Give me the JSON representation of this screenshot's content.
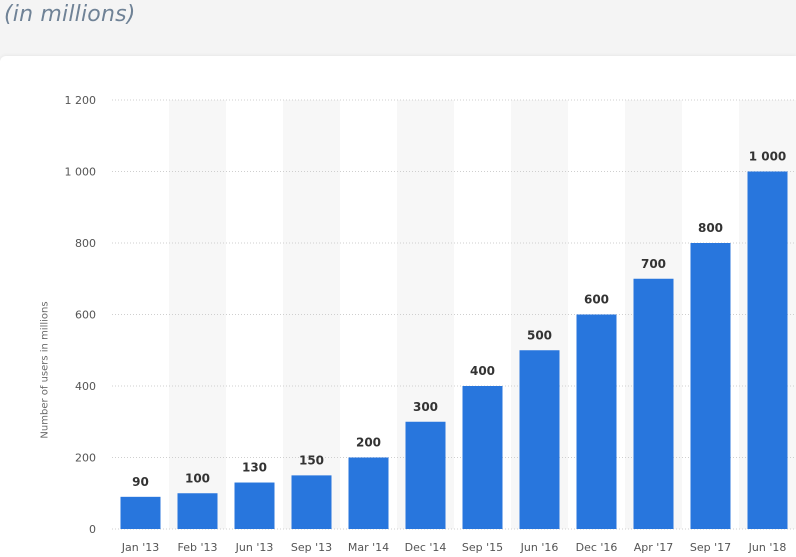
{
  "header": {
    "subtitle": "(in millions)"
  },
  "chart_data": {
    "type": "bar",
    "categories": [
      "Jan '13",
      "Feb '13",
      "Jun '13",
      "Sep '13",
      "Mar '14",
      "Dec '14",
      "Sep '15",
      "Jun '16",
      "Dec '16",
      "Apr '17",
      "Sep '17",
      "Jun '18"
    ],
    "values": [
      90,
      100,
      130,
      150,
      200,
      300,
      400,
      500,
      600,
      700,
      800,
      1000
    ],
    "value_labels": [
      "90",
      "100",
      "130",
      "150",
      "200",
      "300",
      "400",
      "500",
      "600",
      "700",
      "800",
      "1 000"
    ],
    "ylabel": "Number of users in millions",
    "ylim": [
      0,
      1200
    ],
    "yticks": [
      0,
      200,
      400,
      600,
      800,
      1000,
      1200
    ],
    "ytick_labels": [
      "0",
      "200",
      "400",
      "600",
      "800",
      "1 000",
      "1 200"
    ],
    "grid": true,
    "colors": {
      "bar": "#2876dd",
      "band": "#f7f7f7",
      "grid": "#cfcfcf",
      "value_label": "#333333",
      "tick_label": "#555555"
    }
  }
}
